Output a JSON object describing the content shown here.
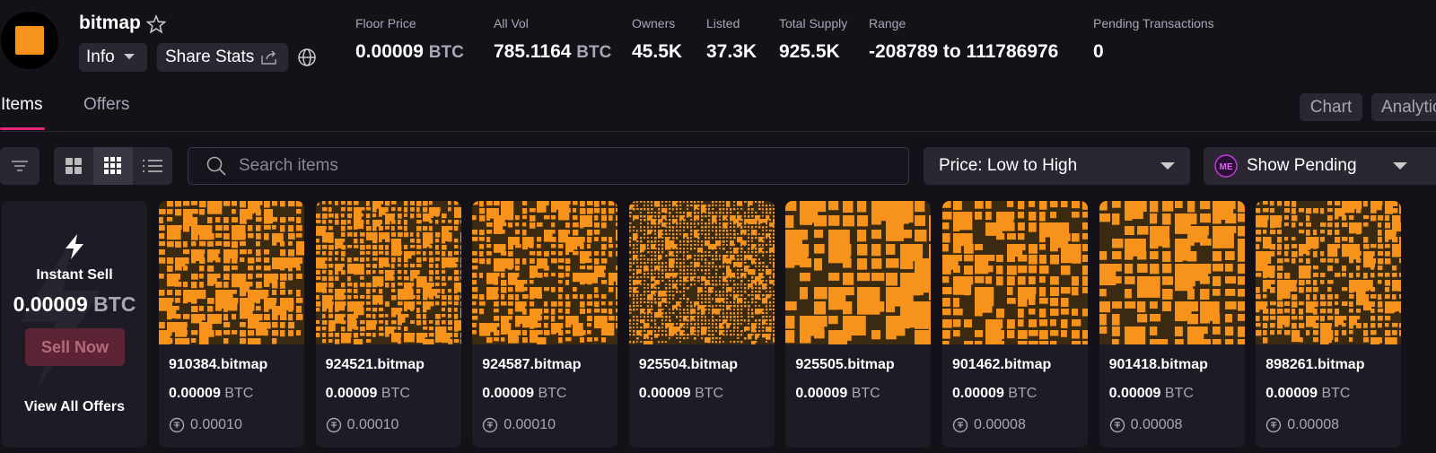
{
  "header": {
    "collection_name": "bitmap",
    "buttons": [
      "Info",
      "Share Stats"
    ],
    "stats": [
      {
        "label": "Floor Price",
        "value": "0.00009",
        "unit": "BTC"
      },
      {
        "label": "All Vol",
        "value": "785.1164",
        "unit": "BTC"
      },
      {
        "label": "Owners",
        "value": "45.5K"
      },
      {
        "label": "Listed",
        "value": "37.3K"
      },
      {
        "label": "Total Supply",
        "value": "925.5K"
      },
      {
        "label": "Range",
        "value": "-208789 to 111786976"
      },
      {
        "label": "Pending Transactions",
        "value": "0"
      }
    ]
  },
  "tabs": [
    "Items",
    "Offers"
  ],
  "view_buttons": [
    "Chart",
    "Analytics"
  ],
  "toolbar": {
    "search_placeholder": "Search items",
    "sort": "Price: Low to High",
    "pending": "Show Pending"
  },
  "instant_sell": {
    "title": "Instant Sell",
    "price": "0.00009",
    "unit": "BTC",
    "button": "Sell Now",
    "link": "View All Offers"
  },
  "items": [
    {
      "name": "910384.bitmap",
      "price": "0.00009",
      "unit": "BTC",
      "last_price": "0.00010"
    },
    {
      "name": "924521.bitmap",
      "price": "0.00009",
      "unit": "BTC",
      "last_price": "0.00010"
    },
    {
      "name": "924587.bitmap",
      "price": "0.00009",
      "unit": "BTC",
      "last_price": "0.00010"
    },
    {
      "name": "925504.bitmap",
      "price": "0.00009",
      "unit": "BTC"
    },
    {
      "name": "925505.bitmap",
      "price": "0.00009",
      "unit": "BTC"
    },
    {
      "name": "901462.bitmap",
      "price": "0.00009",
      "unit": "BTC",
      "last_price": "0.00008"
    },
    {
      "name": "901418.bitmap",
      "price": "0.00009",
      "unit": "BTC",
      "last_price": "0.00008"
    },
    {
      "name": "898261.bitmap",
      "price": "0.00009",
      "unit": "BTC",
      "last_price": "0.00008"
    }
  ]
}
